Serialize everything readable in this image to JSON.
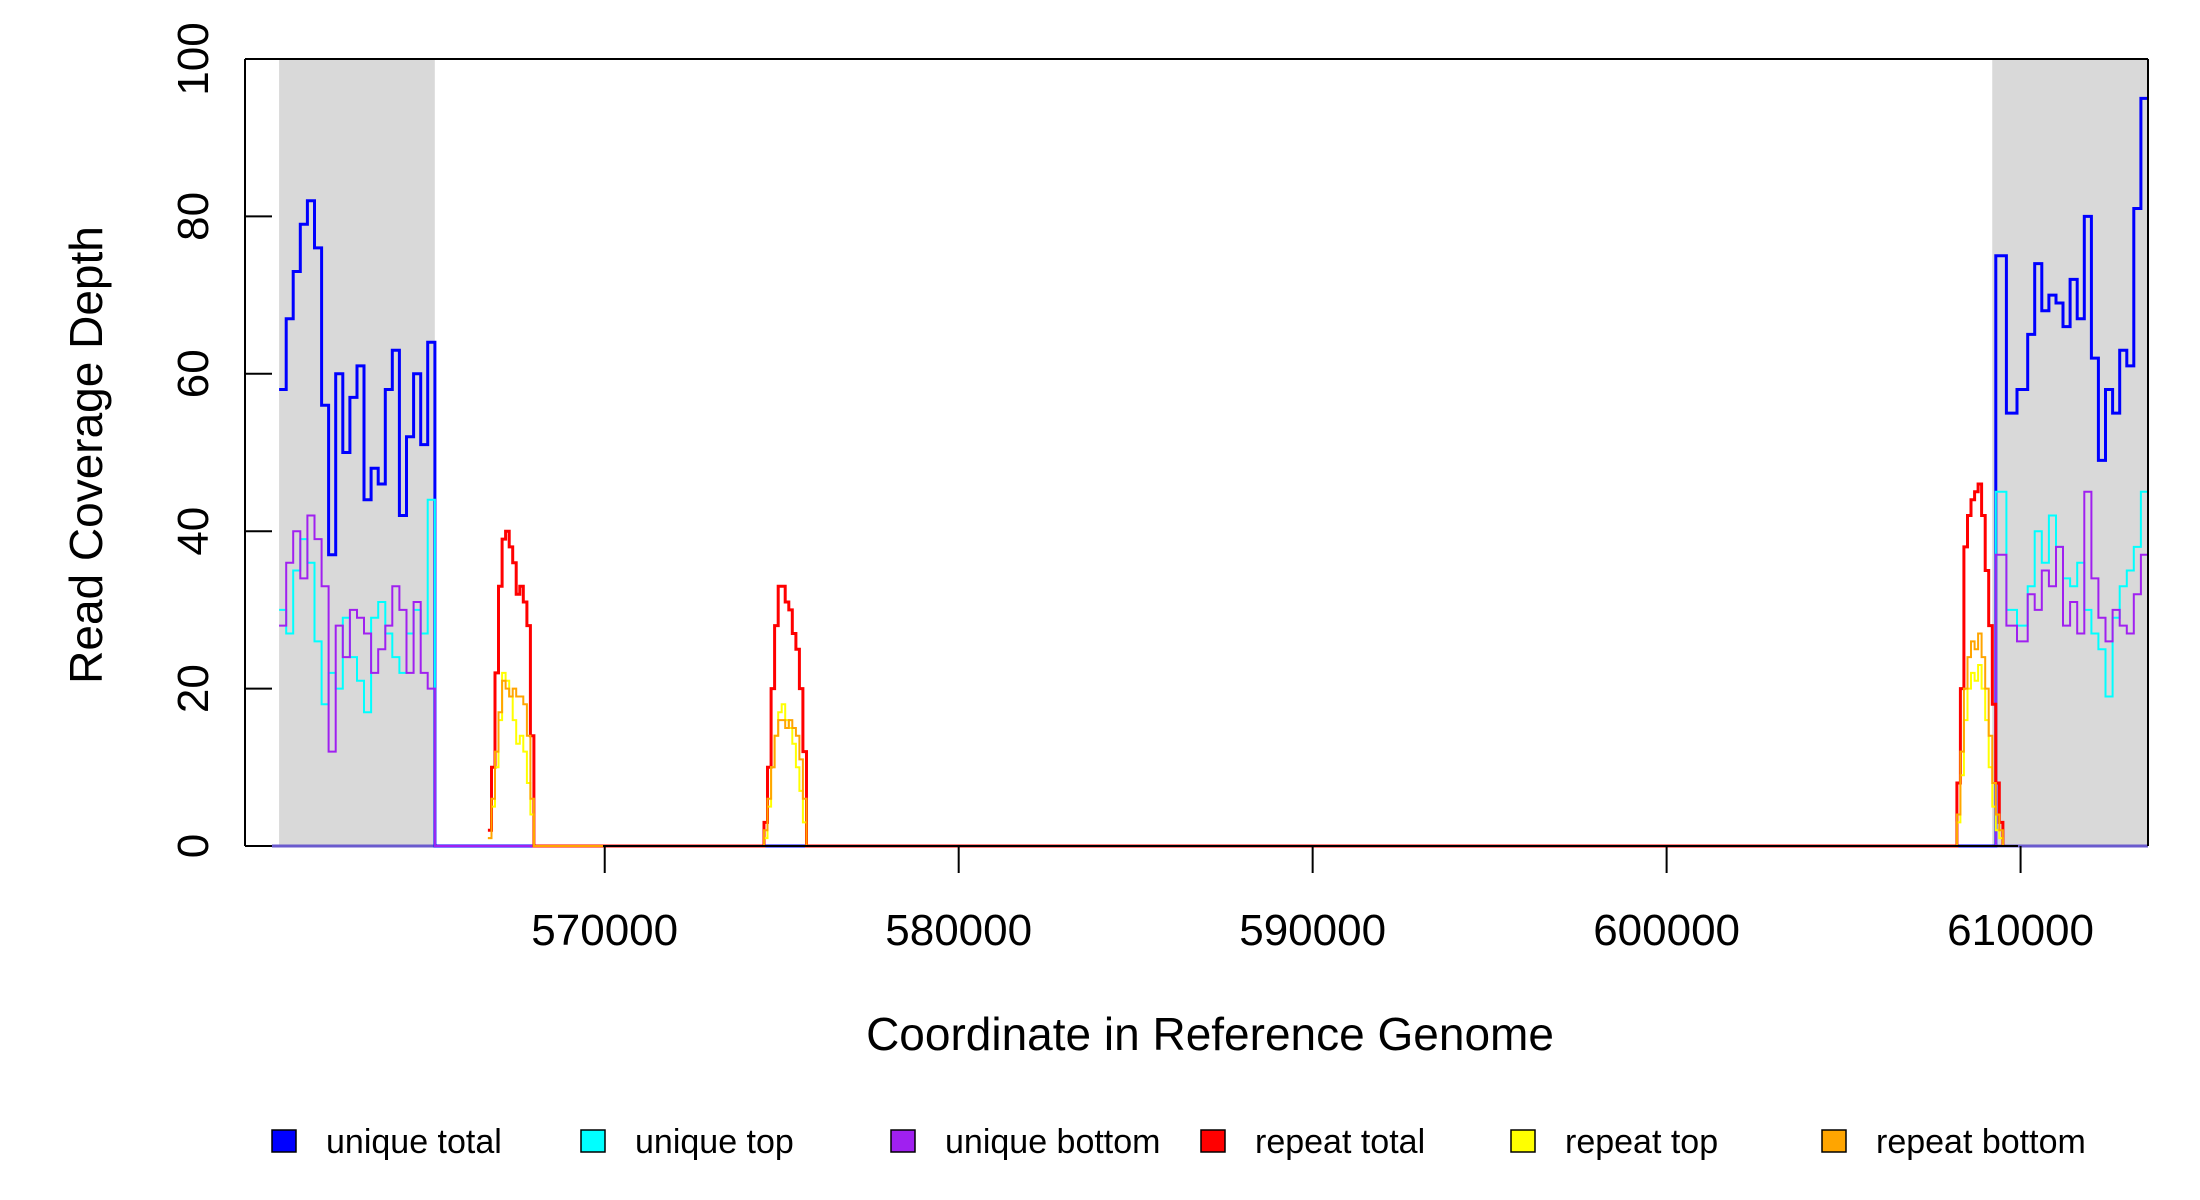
{
  "chart_data": {
    "type": "line",
    "title": "",
    "xlabel": "Coordinate in Reference Genome",
    "ylabel": "Read Coverage Depth",
    "xlim": [
      560600,
      613600
    ],
    "ylim": [
      0,
      100
    ],
    "x_ticks": [
      570000,
      580000,
      590000,
      600000,
      610000
    ],
    "x_tick_labels": [
      "570000",
      "580000",
      "590000",
      "600000",
      "610000"
    ],
    "y_ticks": [
      0,
      20,
      40,
      60,
      80,
      100
    ],
    "y_tick_labels": [
      "0",
      "20",
      "40",
      "60",
      "80",
      "100"
    ],
    "grid": false,
    "shaded_regions": [
      {
        "start": 560800,
        "end": 565200,
        "color": "#d9d9d9"
      },
      {
        "start": 609200,
        "end": 613600,
        "color": "#d9d9d9"
      }
    ],
    "legend_position": "bottom",
    "series": [
      {
        "name": "unique total",
        "color": "#0000ff",
        "x": [
          560800,
          561000,
          561200,
          561400,
          561600,
          561800,
          562000,
          562200,
          562400,
          562600,
          562800,
          563000,
          563200,
          563400,
          563600,
          563800,
          564000,
          564200,
          564400,
          564600,
          564800,
          565000,
          565200,
          565201,
          609200,
          609300,
          609600,
          609900,
          610200,
          610400,
          610600,
          610800,
          611000,
          611200,
          611400,
          611600,
          611800,
          612000,
          612200,
          612400,
          612600,
          612800,
          613000,
          613200,
          613400,
          613600
        ],
        "values": [
          58,
          67,
          73,
          79,
          82,
          76,
          56,
          37,
          60,
          50,
          57,
          61,
          44,
          48,
          46,
          58,
          63,
          42,
          52,
          60,
          51,
          64,
          64,
          0,
          0,
          75,
          55,
          58,
          65,
          74,
          68,
          70,
          69,
          66,
          72,
          67,
          80,
          62,
          49,
          58,
          55,
          63,
          61,
          81,
          95,
          95
        ]
      },
      {
        "name": "unique top",
        "color": "#00ffff",
        "x": [
          560800,
          561000,
          561200,
          561400,
          561600,
          561800,
          562000,
          562200,
          562400,
          562600,
          562800,
          563000,
          563200,
          563400,
          563600,
          563800,
          564000,
          564200,
          564400,
          564600,
          564800,
          565000,
          565200,
          565201,
          609200,
          609300,
          609600,
          609900,
          610200,
          610400,
          610600,
          610800,
          611000,
          611200,
          611400,
          611600,
          611800,
          612000,
          612200,
          612400,
          612600,
          612800,
          613000,
          613200,
          613400,
          613600
        ],
        "values": [
          30,
          27,
          35,
          39,
          36,
          26,
          18,
          22,
          20,
          29,
          24,
          21,
          17,
          29,
          31,
          27,
          24,
          22,
          27,
          30,
          27,
          44,
          44,
          0,
          0,
          45,
          30,
          28,
          33,
          40,
          36,
          42,
          38,
          34,
          33,
          36,
          30,
          27,
          25,
          19,
          29,
          33,
          35,
          38,
          45,
          45
        ]
      },
      {
        "name": "unique bottom",
        "color": "#a020f0",
        "x": [
          560800,
          561000,
          561200,
          561400,
          561600,
          561800,
          562000,
          562200,
          562400,
          562600,
          562800,
          563000,
          563200,
          563400,
          563600,
          563800,
          564000,
          564200,
          564400,
          564600,
          564800,
          565000,
          565200,
          565201,
          609200,
          609300,
          609600,
          609900,
          610200,
          610400,
          610600,
          610800,
          611000,
          611200,
          611400,
          611600,
          611800,
          612000,
          612200,
          612400,
          612600,
          612800,
          613000,
          613200,
          613400,
          613600
        ],
        "values": [
          28,
          36,
          40,
          34,
          42,
          39,
          33,
          12,
          28,
          24,
          30,
          29,
          27,
          22,
          25,
          28,
          33,
          30,
          22,
          31,
          22,
          20,
          20,
          0,
          0,
          37,
          28,
          26,
          32,
          30,
          35,
          33,
          38,
          28,
          31,
          27,
          45,
          34,
          29,
          26,
          30,
          28,
          27,
          32,
          37,
          37
        ]
      },
      {
        "name": "repeat total",
        "color": "#ff0000",
        "x": [
          566700,
          566800,
          566900,
          567000,
          567100,
          567200,
          567300,
          567400,
          567500,
          567600,
          567700,
          567800,
          567900,
          568000,
          568001,
          574500,
          574600,
          574700,
          574800,
          574900,
          575000,
          575100,
          575200,
          575300,
          575400,
          575500,
          575600,
          575700,
          575701,
          608200,
          608300,
          608400,
          608500,
          608600,
          608700,
          608800,
          608900,
          609000,
          609100,
          609200,
          609300,
          609400,
          609500,
          609501
        ],
        "values": [
          2,
          10,
          22,
          33,
          39,
          40,
          38,
          36,
          32,
          33,
          31,
          28,
          14,
          0,
          0,
          3,
          10,
          20,
          28,
          33,
          33,
          31,
          30,
          27,
          25,
          20,
          12,
          4,
          0,
          8,
          20,
          38,
          42,
          44,
          45,
          46,
          42,
          35,
          28,
          18,
          8,
          3,
          1,
          0
        ]
      },
      {
        "name": "repeat top",
        "color": "#ffff00",
        "x": [
          566700,
          566800,
          566900,
          567000,
          567100,
          567200,
          567300,
          567400,
          567500,
          567600,
          567700,
          567800,
          567900,
          568000,
          568001,
          574500,
          574600,
          574700,
          574800,
          574900,
          575000,
          575100,
          575200,
          575300,
          575400,
          575500,
          575600,
          575700,
          575701,
          608200,
          608300,
          608400,
          608500,
          608600,
          608700,
          608800,
          608900,
          609000,
          609100,
          609200,
          609300,
          609400,
          609500,
          609501
        ],
        "values": [
          1,
          5,
          10,
          16,
          22,
          21,
          19,
          16,
          13,
          14,
          12,
          8,
          4,
          0,
          0,
          1,
          5,
          10,
          14,
          17,
          18,
          16,
          15,
          13,
          10,
          7,
          3,
          1,
          0,
          3,
          9,
          16,
          20,
          22,
          21,
          23,
          20,
          16,
          10,
          5,
          2,
          1,
          0,
          0
        ]
      },
      {
        "name": "repeat bottom",
        "color": "#ffa500",
        "x": [
          566700,
          566800,
          566900,
          567000,
          567100,
          567200,
          567300,
          567400,
          567500,
          567600,
          567700,
          567800,
          567900,
          568000,
          568001,
          574500,
          574600,
          574700,
          574800,
          574900,
          575000,
          575100,
          575200,
          575300,
          575400,
          575500,
          575600,
          575700,
          575701,
          608200,
          608300,
          608400,
          608500,
          608600,
          608700,
          608800,
          608900,
          609000,
          609100,
          609200,
          609300,
          609400,
          609500,
          609501
        ],
        "values": [
          1,
          6,
          12,
          17,
          21,
          20,
          19,
          20,
          19,
          19,
          18,
          14,
          6,
          0,
          0,
          2,
          6,
          10,
          14,
          16,
          16,
          15,
          16,
          15,
          14,
          11,
          6,
          2,
          0,
          4,
          12,
          20,
          24,
          26,
          25,
          27,
          24,
          20,
          14,
          8,
          4,
          2,
          1,
          0
        ]
      }
    ]
  }
}
